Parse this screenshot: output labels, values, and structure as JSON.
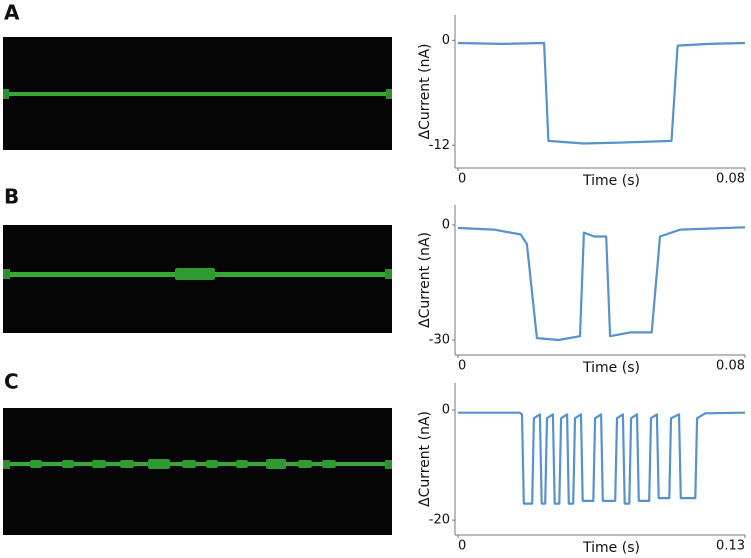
{
  "chart_data": [
    {
      "type": "line",
      "panel": "A",
      "x_label": "Time (s)",
      "y_label": "ΔCurrent (nA)",
      "color": "#3a7fc4",
      "xlim": [
        0,
        0.08
      ],
      "xticks": [
        0,
        0.08
      ],
      "ylim": [
        -14.6,
        2.9
      ],
      "yticks": [
        0,
        -12
      ],
      "x": [
        0,
        0.012,
        0.024,
        0.0252,
        0.035,
        0.045,
        0.0595,
        0.0612,
        0.07,
        0.08
      ],
      "values": [
        -0.3,
        -0.4,
        -0.3,
        -11.5,
        -11.8,
        -11.7,
        -11.5,
        -0.6,
        -0.4,
        -0.3
      ]
    },
    {
      "type": "line",
      "panel": "B",
      "x_label": "Time (s)",
      "y_label": "ΔCurrent (nA)",
      "color": "#3a7fc4",
      "xlim": [
        0,
        0.08
      ],
      "xticks": [
        0,
        0.08
      ],
      "ylim": [
        -33.9,
        5.2
      ],
      "yticks": [
        0,
        -30
      ],
      "x": [
        0,
        0.01,
        0.0175,
        0.0192,
        0.022,
        0.028,
        0.034,
        0.0351,
        0.038,
        0.0413,
        0.0424,
        0.048,
        0.054,
        0.0563,
        0.062,
        0.08
      ],
      "values": [
        -0.8,
        -1.2,
        -2.5,
        -5,
        -29.5,
        -30,
        -29,
        -2,
        -3,
        -3,
        -29,
        -28,
        -28,
        -3,
        -1.2,
        -0.6
      ]
    },
    {
      "type": "line",
      "panel": "C",
      "x_label": "Time (s)",
      "y_label": "ΔCurrent (nA)",
      "color": "#3a7fc4",
      "xlim": [
        0,
        0.13
      ],
      "xticks": [
        0,
        0.13
      ],
      "ylim": [
        -22.7,
        4.9
      ],
      "yticks": [
        0,
        -20
      ],
      "x": [
        0,
        0.028,
        0.029,
        0.0298,
        0.0336,
        0.0344,
        0.0371,
        0.0379,
        0.0395,
        0.0403,
        0.043,
        0.0438,
        0.0459,
        0.0467,
        0.0494,
        0.0502,
        0.0522,
        0.053,
        0.0557,
        0.0565,
        0.0613,
        0.0621,
        0.0648,
        0.0656,
        0.0712,
        0.072,
        0.0747,
        0.0755,
        0.0776,
        0.0784,
        0.0811,
        0.0819,
        0.0866,
        0.0874,
        0.0901,
        0.0909,
        0.0957,
        0.0965,
        0.1001,
        0.1009,
        0.1075,
        0.1083,
        0.112,
        0.13
      ],
      "values": [
        -0.5,
        -0.5,
        -0.8,
        -17,
        -17,
        -1.5,
        -0.8,
        -17,
        -17,
        -1.5,
        -0.8,
        -17,
        -17,
        -1.5,
        -0.8,
        -17,
        -17,
        -1.5,
        -0.8,
        -16.5,
        -16.5,
        -1.5,
        -0.8,
        -16.5,
        -16.5,
        -1.5,
        -0.8,
        -17,
        -17,
        -1.5,
        -0.8,
        -16.5,
        -16.5,
        -1.5,
        -0.8,
        -16,
        -16,
        -1.5,
        -0.8,
        -16,
        -16,
        -1.5,
        -0.6,
        -0.5
      ]
    }
  ]
}
